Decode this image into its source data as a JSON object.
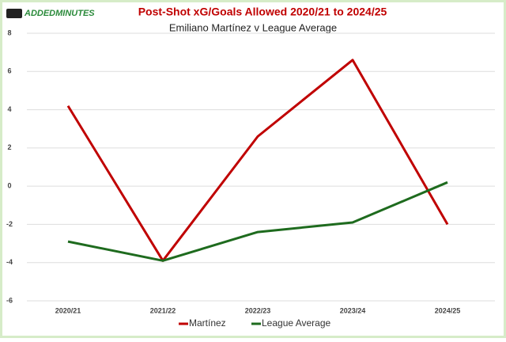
{
  "chart_data": {
    "type": "line",
    "logo": "ADDEDMINUTES",
    "title": "Post-Shot xG/Goals Allowed 2020/21 to 2024/25",
    "subtitle": "Emiliano Martínez v League Average",
    "categories": [
      "2020/21",
      "2021/22",
      "2022/23",
      "2023/24",
      "2024/25"
    ],
    "series": [
      {
        "name": "Martínez",
        "color": "#c00000",
        "values": [
          4.2,
          -3.9,
          2.6,
          6.6,
          -2.0
        ]
      },
      {
        "name": "League Average",
        "color": "#1e6b1e",
        "values": [
          -2.9,
          -3.9,
          -2.4,
          -1.9,
          0.2
        ]
      }
    ],
    "ylim": [
      -6,
      8
    ],
    "yticks": [
      -6,
      -4,
      -2,
      0,
      2,
      4,
      6,
      8
    ],
    "grid": true,
    "legend": "bottom"
  }
}
